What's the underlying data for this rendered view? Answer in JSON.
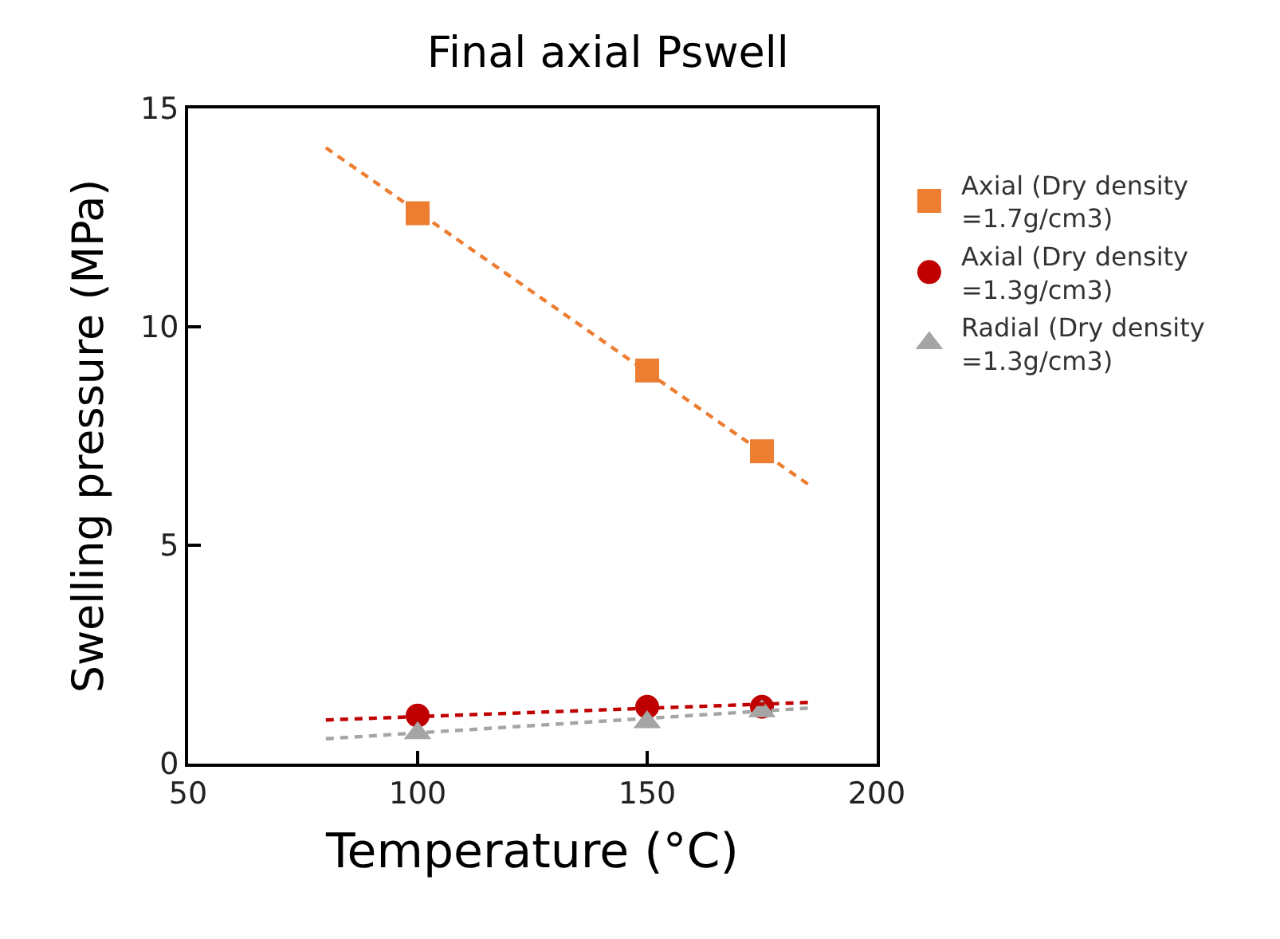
{
  "chart_data": {
    "type": "scatter",
    "title": "Final axial Pswell",
    "xlabel": "Temperature (°C)",
    "ylabel": "Swelling pressure (MPa)",
    "xlim": [
      50,
      200
    ],
    "xticks": [
      50,
      100,
      150,
      200
    ],
    "ylim": [
      0,
      15
    ],
    "yticks": [
      0,
      5,
      10,
      15
    ],
    "legend": "right",
    "series": [
      {
        "name": "Axial (Dry density\n=1.7g/cm3)",
        "color": "#ed7d31",
        "marker": "square",
        "x": [
          100,
          150,
          175
        ],
        "values": [
          12.6,
          9.0,
          7.15
        ]
      },
      {
        "name": "Axial (Dry density\n=1.3g/cm3)",
        "color": "#c00000",
        "marker": "circle",
        "x": [
          100,
          150,
          175
        ],
        "values": [
          1.1,
          1.3,
          1.3
        ]
      },
      {
        "name": "Radial (Dry density\n=1.3g/cm3)",
        "color": "#a5a5a5",
        "marker": "triangle",
        "x": [
          100,
          150,
          175
        ],
        "values": [
          0.7,
          0.95,
          1.2
        ]
      },
      {
        "type": "line",
        "color": "#ed7d31",
        "line_style": "dashed",
        "marker": "none",
        "x": [
          80,
          185
        ],
        "values": [
          14.1,
          6.4
        ]
      },
      {
        "type": "line",
        "color": "#c00000",
        "line_style": "dashed",
        "marker": "none",
        "x": [
          80,
          185
        ],
        "values": [
          1.0,
          1.4
        ]
      },
      {
        "type": "line",
        "color": "#a5a5a5",
        "line_style": "dashed",
        "marker": "none",
        "x": [
          80,
          185
        ],
        "values": [
          0.57,
          1.27
        ]
      }
    ]
  }
}
